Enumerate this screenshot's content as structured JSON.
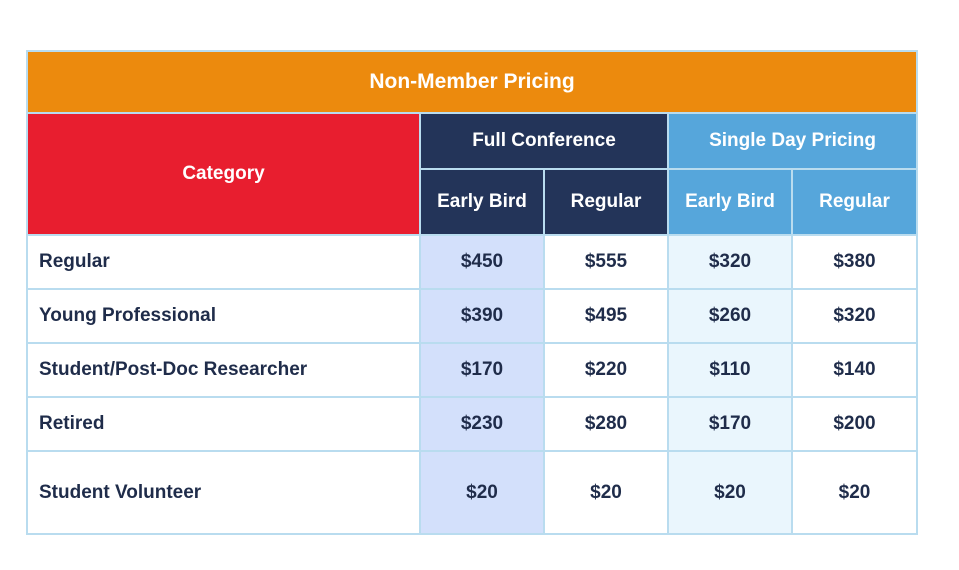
{
  "table": {
    "title": "Non-Member Pricing",
    "category_header": "Category",
    "groups": [
      {
        "label": "Full Conference",
        "sub": [
          "Early Bird",
          "Regular"
        ]
      },
      {
        "label": "Single Day Pricing",
        "sub": [
          "Early Bird",
          "Regular"
        ]
      }
    ],
    "rows": [
      {
        "category": "Regular",
        "values": [
          "$450",
          "$555",
          "$320",
          "$380"
        ]
      },
      {
        "category": "Young Professional",
        "values": [
          "$390",
          "$495",
          "$260",
          "$320"
        ]
      },
      {
        "category": "Student/Post-Doc Researcher",
        "values": [
          "$170",
          "$220",
          "$110",
          "$140"
        ]
      },
      {
        "category": "Retired",
        "values": [
          "$230",
          "$280",
          "$170",
          "$200"
        ]
      },
      {
        "category": "Student Volunteer",
        "values": [
          "$20",
          "$20",
          "$20",
          "$20"
        ]
      }
    ]
  },
  "colors": {
    "title_bg": "#ec8a0d",
    "category_bg": "#e81e2f",
    "full_conference_bg": "#233459",
    "single_day_bg": "#56a6db",
    "full_early_bird_cell": "#d3e0fb",
    "single_early_bird_cell": "#eaf6fd",
    "text_dark": "#1f2c4a"
  }
}
